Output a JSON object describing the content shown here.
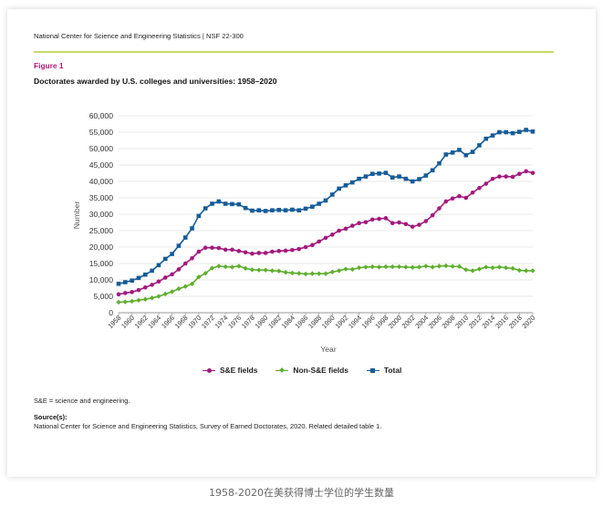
{
  "header": "National Center for Science and Engineering Statistics  |  NSF 22-300",
  "figure_label": "Figure 1",
  "figure_title": "Doctorates awarded by U.S. colleges and universities: 1958–2020",
  "note": "S&E = science and engineering.",
  "source_heading": "Source(s):",
  "source_text": "National Center for Science and Engineering Statistics, Survey of Earned Doctorates, 2020. Related detailed table 1.",
  "caption": "1958-2020在美获得博士学位的学生数量",
  "colors": {
    "se": "#a3197d",
    "nonse": "#5daf2d",
    "total": "#155c99",
    "accent_rule": "#c4d96a"
  },
  "chart_data": {
    "type": "line",
    "title": "Doctorates awarded by U.S. colleges and universities: 1958–2020",
    "xlabel": "Year",
    "ylabel": "Number",
    "ylim": [
      0,
      60000
    ],
    "yticks": [
      0,
      5000,
      10000,
      15000,
      20000,
      25000,
      30000,
      35000,
      40000,
      45000,
      50000,
      55000,
      60000
    ],
    "ytick_labels": [
      "0",
      "5,000",
      "10,000",
      "15,000",
      "20,000",
      "25,000",
      "30,000",
      "35,000",
      "40,000",
      "45,000",
      "50,000",
      "55,000",
      "60,000"
    ],
    "xtick_labels": [
      "1958",
      "1960",
      "1962",
      "1964",
      "1966",
      "1968",
      "1970",
      "1972",
      "1974",
      "1976",
      "1978",
      "1980",
      "1982",
      "1984",
      "1986",
      "1988",
      "1990",
      "1992",
      "1994",
      "1996",
      "1998",
      "2000",
      "2002",
      "2004",
      "2006",
      "2008",
      "2010",
      "2012",
      "2014",
      "2016",
      "2018",
      "2020"
    ],
    "grid": true,
    "legend_placement": "bottom",
    "x": [
      1958,
      1959,
      1960,
      1961,
      1962,
      1963,
      1964,
      1965,
      1966,
      1967,
      1968,
      1969,
      1970,
      1971,
      1972,
      1973,
      1974,
      1975,
      1976,
      1977,
      1978,
      1979,
      1980,
      1981,
      1982,
      1983,
      1984,
      1985,
      1986,
      1987,
      1988,
      1989,
      1990,
      1991,
      1992,
      1993,
      1994,
      1995,
      1996,
      1997,
      1998,
      1999,
      2000,
      2001,
      2002,
      2003,
      2004,
      2005,
      2006,
      2007,
      2008,
      2009,
      2010,
      2011,
      2012,
      2013,
      2014,
      2015,
      2016,
      2017,
      2018,
      2019,
      2020
    ],
    "series": [
      {
        "name": "S&E fields",
        "key": "se",
        "values": [
          5600,
          6000,
          6300,
          6900,
          7700,
          8500,
          9500,
          10700,
          11700,
          13200,
          15000,
          16600,
          18600,
          19800,
          19800,
          19700,
          19200,
          19200,
          18800,
          18400,
          18000,
          18200,
          18200,
          18600,
          18800,
          18900,
          19100,
          19400,
          20000,
          20600,
          21700,
          22800,
          23800,
          25000,
          25600,
          26500,
          27300,
          27600,
          28400,
          28600,
          28800,
          27300,
          27500,
          27000,
          26200,
          26800,
          27900,
          29700,
          31800,
          33900,
          34800,
          35500,
          35000,
          36600,
          38000,
          39300,
          40800,
          41500,
          41500,
          41400,
          42300,
          43100,
          42600
        ]
      },
      {
        "name": "Non-S&E fields",
        "key": "nonse",
        "values": [
          3200,
          3300,
          3500,
          3800,
          4100,
          4500,
          5000,
          5700,
          6400,
          7300,
          8000,
          8800,
          10900,
          12000,
          13600,
          14200,
          14000,
          13900,
          14200,
          13500,
          13100,
          13000,
          13000,
          12800,
          12700,
          12300,
          12100,
          12000,
          11800,
          11900,
          11900,
          11900,
          12400,
          12800,
          13300,
          13200,
          13700,
          13900,
          14000,
          13900,
          14000,
          14000,
          14000,
          13900,
          13800,
          13900,
          14200,
          13900,
          14200,
          14300,
          14100,
          14100,
          13100,
          12800,
          13300,
          13900,
          13700,
          13900,
          13700,
          13500,
          12900,
          12800,
          12800
        ]
      },
      {
        "name": "Total",
        "key": "total",
        "values": [
          8800,
          9300,
          9800,
          10600,
          11600,
          12800,
          14500,
          16400,
          17900,
          20400,
          22900,
          25700,
          29500,
          31800,
          33200,
          33900,
          33200,
          33100,
          33000,
          31900,
          31100,
          31200,
          31000,
          31200,
          31300,
          31200,
          31400,
          31200,
          31700,
          32300,
          33200,
          34200,
          36000,
          37800,
          38800,
          39700,
          40800,
          41500,
          42300,
          42400,
          42600,
          41200,
          41500,
          40800,
          40000,
          40700,
          41800,
          43400,
          45500,
          48200,
          48800,
          49600,
          48000,
          49000,
          51000,
          53000,
          54000,
          55000,
          55000,
          54700,
          55100,
          55700,
          55200
        ]
      }
    ]
  }
}
